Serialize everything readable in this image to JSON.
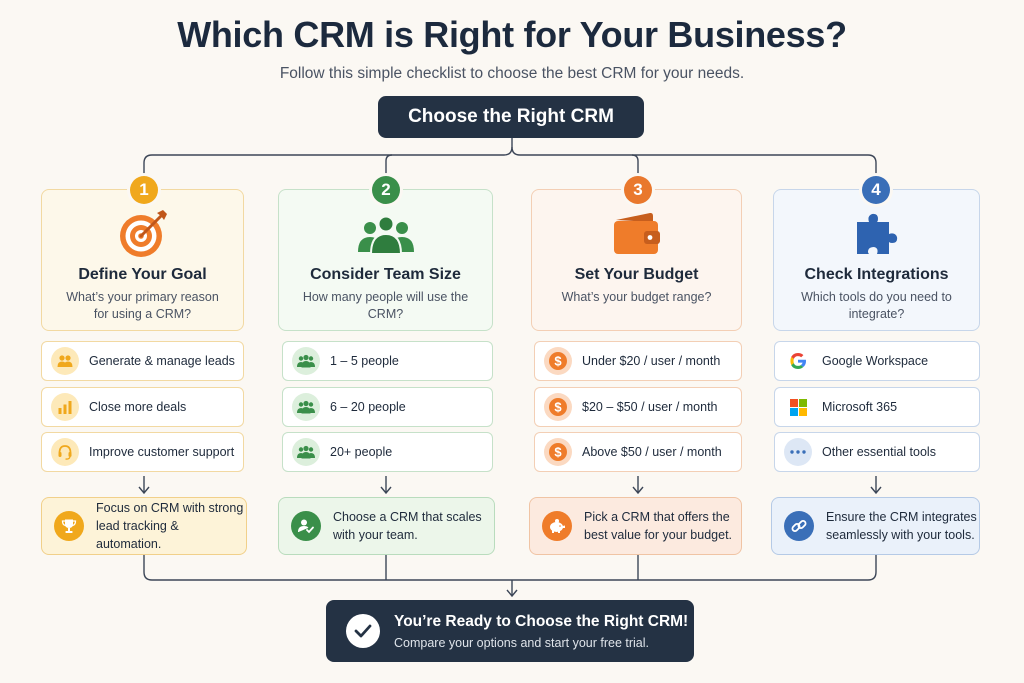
{
  "header": {
    "title": "Which CRM is Right for Your Business?",
    "subtitle": "Follow this simple checklist to choose the best CRM for your needs."
  },
  "top_node": {
    "label": "Choose the Right CRM"
  },
  "colors": {
    "goal": "#f0a81c",
    "team": "#3a8f4a",
    "budget": "#e9782d",
    "integrations": "#3a6fb8",
    "dark": "#243244"
  },
  "columns": [
    {
      "number": "1",
      "icon": "target-icon",
      "title": "Define Your Goal",
      "question": "What’s your primary reason for using a CRM?",
      "options": [
        {
          "icon": "people-icon",
          "label": "Generate & manage leads"
        },
        {
          "icon": "bar-chart-icon",
          "label": "Close more deals"
        },
        {
          "icon": "headset-icon",
          "label": "Improve customer support"
        }
      ],
      "result": {
        "icon": "trophy-icon",
        "text": "Focus on CRM with strong lead tracking & automation."
      }
    },
    {
      "number": "2",
      "icon": "team-icon",
      "title": "Consider Team Size",
      "question": "How many people will use the CRM?",
      "options": [
        {
          "icon": "group-icon",
          "label": "1 – 5 people"
        },
        {
          "icon": "group-icon",
          "label": "6 – 20 people"
        },
        {
          "icon": "group-icon",
          "label": "20+ people"
        }
      ],
      "result": {
        "icon": "user-check-icon",
        "text": "Choose a CRM that scales with your team."
      }
    },
    {
      "number": "3",
      "icon": "wallet-icon",
      "title": "Set Your Budget",
      "question": "What’s your budget range?",
      "options": [
        {
          "icon": "dollar-icon",
          "label": "Under $20 / user / month"
        },
        {
          "icon": "dollar-icon",
          "label": "$20 – $50 / user / month"
        },
        {
          "icon": "dollar-icon",
          "label": "Above $50 / user / month"
        }
      ],
      "result": {
        "icon": "piggy-bank-icon",
        "text": "Pick a CRM that offers the best value for your budget."
      }
    },
    {
      "number": "4",
      "icon": "puzzle-icon",
      "title": "Check Integrations",
      "question": "Which tools do you need to integrate?",
      "options": [
        {
          "icon": "google-icon",
          "label": "Google Workspace"
        },
        {
          "icon": "microsoft-icon",
          "label": "Microsoft 365"
        },
        {
          "icon": "more-dots-icon",
          "label": "Other essential tools"
        }
      ],
      "result": {
        "icon": "link-icon",
        "text": "Ensure the CRM integrates seamlessly with your tools."
      }
    }
  ],
  "final": {
    "title": "You’re Ready to Choose the Right CRM!",
    "subtitle": "Compare your options and start your free trial."
  }
}
